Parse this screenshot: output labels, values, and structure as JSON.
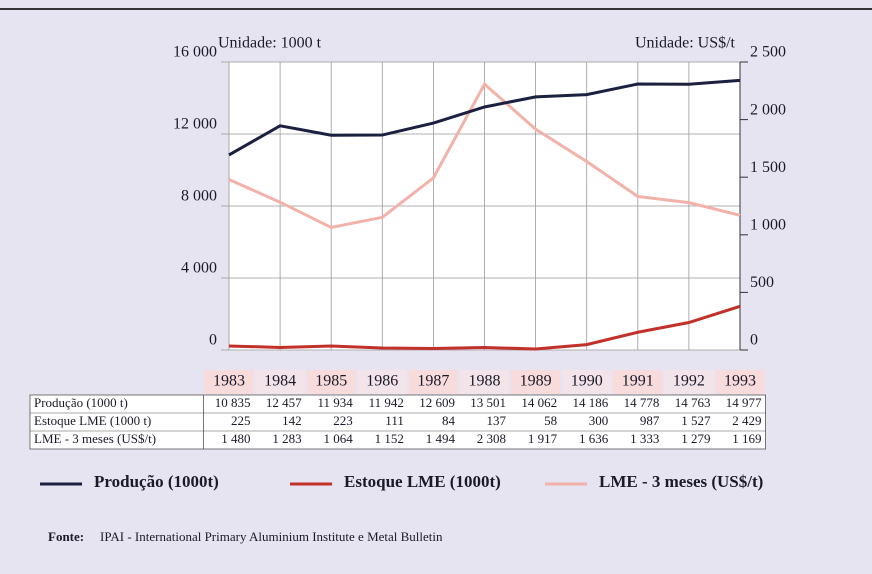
{
  "chart_data": {
    "type": "line",
    "left_unit": "Unidade: 1000 t",
    "right_unit": "Unidade: US$/t",
    "categories": [
      "1983",
      "1984",
      "1985",
      "1986",
      "1987",
      "1988",
      "1989",
      "1990",
      "1991",
      "1992",
      "1993"
    ],
    "series": [
      {
        "name": "Produção (1000t)",
        "row_label": "Produção (1000 t)",
        "color": "#1b2040",
        "axis": "y",
        "values": [
          10835,
          12457,
          11934,
          11942,
          12609,
          13501,
          14062,
          14186,
          14778,
          14763,
          14977
        ],
        "value_labels": [
          "10 835",
          "12 457",
          "11 934",
          "11 942",
          "12 609",
          "13 501",
          "14 062",
          "14 186",
          "14 778",
          "14 763",
          "14 977"
        ]
      },
      {
        "name": "Estoque LME (1000t)",
        "row_label": "Estoque LME (1000 t)",
        "color": "#c2302a",
        "axis": "y",
        "values": [
          225,
          142,
          223,
          111,
          84,
          137,
          58,
          300,
          987,
          1527,
          2429
        ],
        "value_labels": [
          "225",
          "142",
          "223",
          "111",
          "84",
          "137",
          "58",
          "300",
          "987",
          "1 527",
          "2 429"
        ]
      },
      {
        "name": "LME - 3 meses (US$/t)",
        "row_label": "LME - 3 meses (US$/t)",
        "color": "#f2b2aa",
        "axis": "y2",
        "values": [
          1480,
          1283,
          1064,
          1152,
          1494,
          2308,
          1917,
          1636,
          1333,
          1279,
          1169
        ],
        "value_labels": [
          "1 480",
          "1 283",
          "1 064",
          "1 152",
          "1 494",
          "2 308",
          "1 917",
          "1 636",
          "1 333",
          "1 279",
          "1 169"
        ]
      }
    ],
    "ylim": [
      0,
      16000
    ],
    "yticks": [
      {
        "value": 0,
        "label": "0"
      },
      {
        "value": 4000,
        "label": "4 000"
      },
      {
        "value": 8000,
        "label": "8 000"
      },
      {
        "value": 12000,
        "label": "12 000"
      },
      {
        "value": 16000,
        "label": "16 000"
      }
    ],
    "y2lim": [
      0,
      2500
    ],
    "y2ticks": [
      {
        "value": 0,
        "label": "0"
      },
      {
        "value": 500,
        "label": "500"
      },
      {
        "value": 1000,
        "label": "1 000"
      },
      {
        "value": 1500,
        "label": "1 500"
      },
      {
        "value": 2000,
        "label": "2 000"
      },
      {
        "value": 2500,
        "label": "2 500"
      }
    ],
    "grid": true,
    "source_label": "Fonte:",
    "source": "IPAI - International Primary Aluminium Institute e Metal Bulletin"
  }
}
